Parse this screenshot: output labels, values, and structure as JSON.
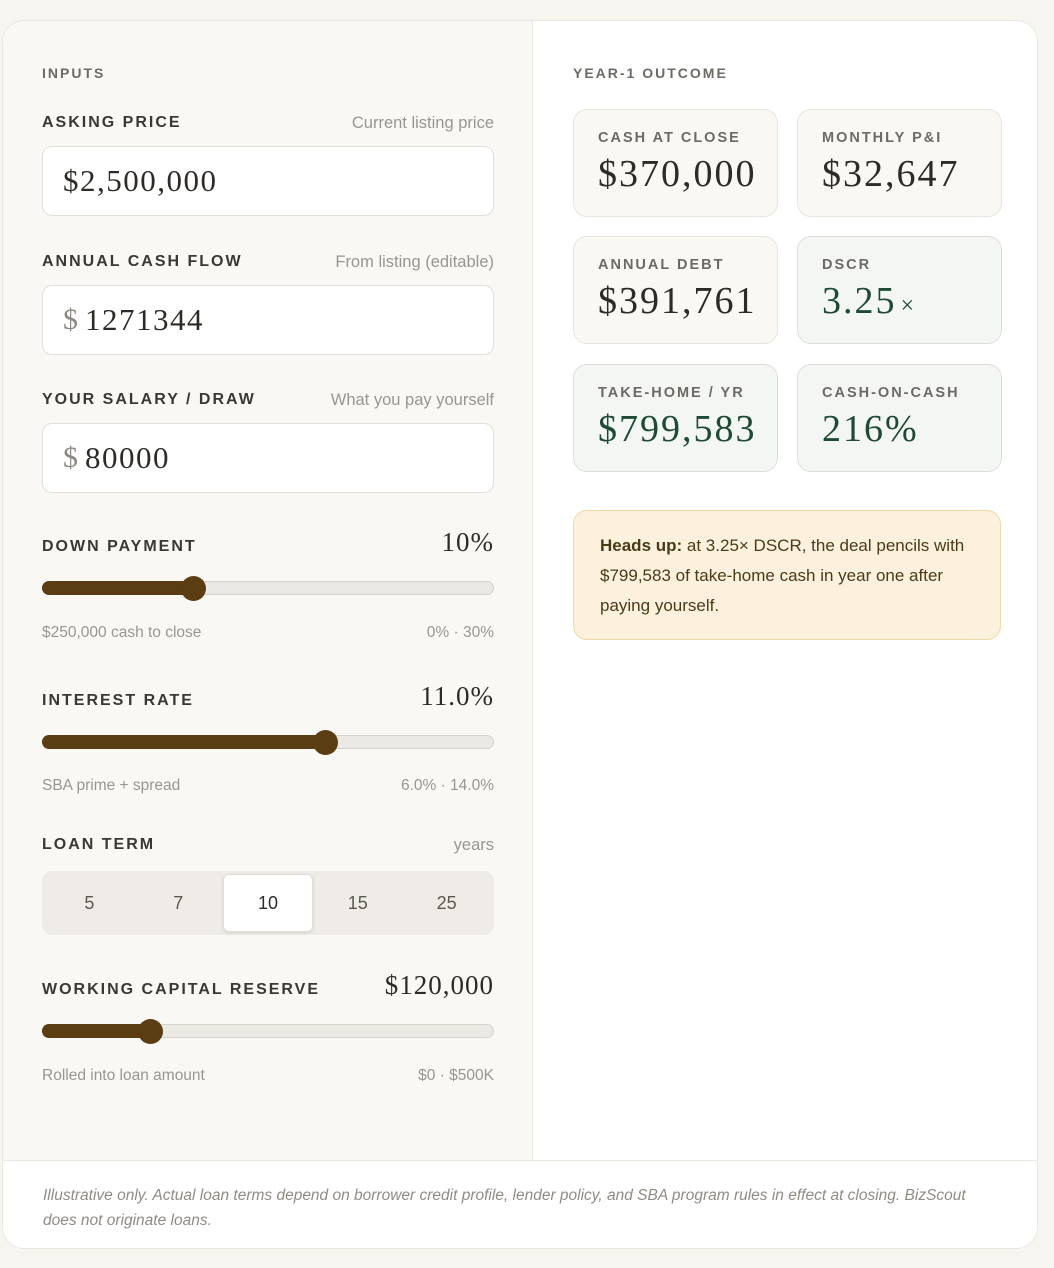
{
  "inputs": {
    "section_label": "INPUTS",
    "asking_price": {
      "label": "ASKING PRICE",
      "hint": "Current listing price",
      "value": "$2,500,000"
    },
    "annual_cash_flow": {
      "label": "ANNUAL CASH FLOW",
      "hint": "From listing (editable)",
      "currency": "$",
      "value": "1271344"
    },
    "salary": {
      "label": "YOUR SALARY / DRAW",
      "hint": "What you pay yourself",
      "currency": "$",
      "value": "80000"
    },
    "down_payment": {
      "label": "DOWN PAYMENT",
      "value": "10%",
      "fraction": 0.333,
      "sub_left": "$250,000 cash to close",
      "sub_right": "0% · 30%"
    },
    "interest_rate": {
      "label": "INTEREST RATE",
      "value": "11.0%",
      "fraction": 0.625,
      "sub_left": "SBA prime + spread",
      "sub_right": "6.0% · 14.0%"
    },
    "loan_term": {
      "label": "LOAN TERM",
      "hint": "years",
      "options": [
        "5",
        "7",
        "10",
        "15",
        "25"
      ],
      "selected": "10"
    },
    "working_capital": {
      "label": "WORKING CAPITAL RESERVE",
      "value": "$120,000",
      "fraction": 0.24,
      "sub_left": "Rolled into loan amount",
      "sub_right": "$0 · $500K"
    }
  },
  "outcome": {
    "section_label": "YEAR-1 OUTCOME",
    "cash_at_close": {
      "label": "CASH AT CLOSE",
      "value": "$370,000"
    },
    "monthly_pi": {
      "label": "MONTHLY P&I",
      "value": "$32,647"
    },
    "annual_debt": {
      "label": "ANNUAL DEBT",
      "value": "$391,761"
    },
    "dscr": {
      "label": "DSCR",
      "value": "3.25",
      "suffix": "×"
    },
    "take_home": {
      "label": "TAKE-HOME / YR",
      "value": "$799,583"
    },
    "cash_on_cash": {
      "label": "CASH-ON-CASH",
      "value": "216%"
    },
    "alert": {
      "bold": "Heads up:",
      "text": " at 3.25× DSCR, the deal pencils with $799,583 of take-home cash in year one after paying yourself."
    }
  },
  "footer": {
    "disclaimer": "Illustrative only. Actual loan terms depend on borrower credit profile, lender policy, and SBA program rules in effect at closing. BizScout does not originate loans."
  },
  "colors": {
    "accent": "#5a3d12",
    "positive": "#1f4a33",
    "alert_bg": "#fcf1dc"
  }
}
